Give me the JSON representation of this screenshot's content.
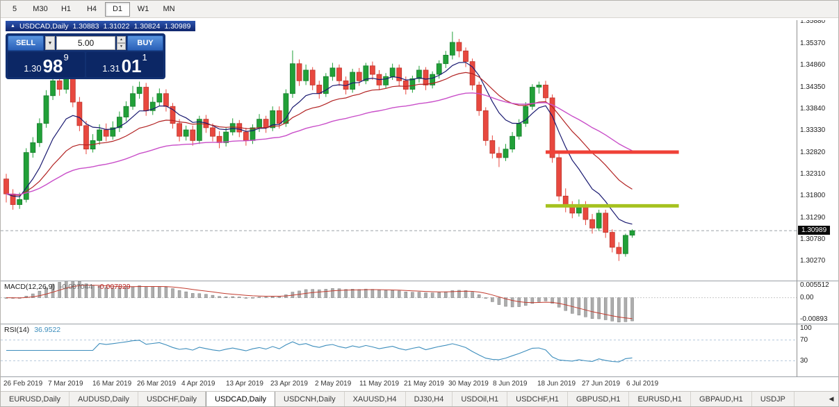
{
  "toolbar": {
    "timeframes": [
      {
        "label": "5",
        "active": false
      },
      {
        "label": "M30",
        "active": false
      },
      {
        "label": "H1",
        "active": false
      },
      {
        "label": "H4",
        "active": false
      },
      {
        "label": "D1",
        "active": true
      },
      {
        "label": "W1",
        "active": false
      },
      {
        "label": "MN",
        "active": false
      }
    ]
  },
  "icons": {
    "title_marker": "▲",
    "dropdown": "▼",
    "spin_up": "▲",
    "spin_down": "▼",
    "tab_scroll_left": "◀"
  },
  "chart_header": {
    "symbol": "USDCAD,Daily",
    "open": "1.30883",
    "high": "1.31022",
    "low": "1.30824",
    "close": "1.30989"
  },
  "trade_panel": {
    "sell_label": "SELL",
    "buy_label": "BUY",
    "volume": "5.00",
    "sell_price": {
      "small": "1.30",
      "big": "98",
      "sup": "9"
    },
    "buy_price": {
      "small": "1.31",
      "big": "01",
      "sup": "1"
    }
  },
  "chart_data": {
    "type": "candlestick",
    "symbol": "USDCAD",
    "period": "Daily",
    "bid": 1.30989,
    "bid_label": "1.30989",
    "price_axis": {
      "max": 1.3592,
      "min": 1.2982,
      "labels": [
        "1.35880",
        "1.35370",
        "1.34860",
        "1.34350",
        "1.33840",
        "1.33330",
        "1.32820",
        "1.32310",
        "1.31800",
        "1.31290",
        "1.30780",
        "1.30270"
      ]
    },
    "x_labels": [
      "26 Feb 2019",
      "7 Mar 2019",
      "16 Mar 2019",
      "26 Mar 2019",
      "4 Apr 2019",
      "13 Apr 2019",
      "23 Apr 2019",
      "2 May 2019",
      "11 May 2019",
      "21 May 2019",
      "30 May 2019",
      "8 Jun 2019",
      "18 Jun 2019",
      "27 Jun 2019",
      "6 Jul 2019"
    ],
    "candles": [
      [
        1.322,
        1.3232,
        1.3165,
        1.3185
      ],
      [
        1.3185,
        1.3196,
        1.3148,
        1.316
      ],
      [
        1.316,
        1.3188,
        1.315,
        1.3172
      ],
      [
        1.3172,
        1.3292,
        1.3165,
        1.3282
      ],
      [
        1.3282,
        1.3318,
        1.327,
        1.3305
      ],
      [
        1.3305,
        1.3362,
        1.3295,
        1.335
      ],
      [
        1.335,
        1.3428,
        1.334,
        1.3415
      ],
      [
        1.3415,
        1.3462,
        1.3405,
        1.345
      ],
      [
        1.345,
        1.3468,
        1.3415,
        1.343
      ],
      [
        1.343,
        1.347,
        1.342,
        1.3455
      ],
      [
        1.3455,
        1.3465,
        1.3388,
        1.34
      ],
      [
        1.34,
        1.3412,
        1.3332,
        1.3345
      ],
      [
        1.3345,
        1.3356,
        1.3278,
        1.329
      ],
      [
        1.329,
        1.3325,
        1.3282,
        1.331
      ],
      [
        1.331,
        1.3348,
        1.33,
        1.3335
      ],
      [
        1.3335,
        1.335,
        1.3308,
        1.332
      ],
      [
        1.332,
        1.3355,
        1.3312,
        1.334
      ],
      [
        1.334,
        1.3378,
        1.333,
        1.3365
      ],
      [
        1.3365,
        1.3402,
        1.3355,
        1.339
      ],
      [
        1.339,
        1.3438,
        1.3382,
        1.342
      ],
      [
        1.342,
        1.3448,
        1.3408,
        1.3435
      ],
      [
        1.3435,
        1.3445,
        1.3368,
        1.338
      ],
      [
        1.338,
        1.3412,
        1.337,
        1.34
      ],
      [
        1.34,
        1.3432,
        1.339,
        1.342
      ],
      [
        1.342,
        1.343,
        1.3378,
        1.339
      ],
      [
        1.339,
        1.3398,
        1.3338,
        1.335
      ],
      [
        1.335,
        1.336,
        1.3308,
        1.332
      ],
      [
        1.332,
        1.3345,
        1.331,
        1.3335
      ],
      [
        1.3335,
        1.3345,
        1.3298,
        1.331
      ],
      [
        1.331,
        1.3368,
        1.3302,
        1.336
      ],
      [
        1.336,
        1.337,
        1.3328,
        1.334
      ],
      [
        1.334,
        1.335,
        1.3308,
        1.332
      ],
      [
        1.332,
        1.3332,
        1.3292,
        1.3305
      ],
      [
        1.3305,
        1.334,
        1.3296,
        1.333
      ],
      [
        1.333,
        1.3362,
        1.3322,
        1.335
      ],
      [
        1.335,
        1.3358,
        1.3318,
        1.333
      ],
      [
        1.333,
        1.334,
        1.3298,
        1.331
      ],
      [
        1.331,
        1.3348,
        1.3302,
        1.334
      ],
      [
        1.334,
        1.3372,
        1.333,
        1.336
      ],
      [
        1.336,
        1.3368,
        1.3328,
        1.334
      ],
      [
        1.334,
        1.339,
        1.3332,
        1.338
      ],
      [
        1.338,
        1.339,
        1.3338,
        1.335
      ],
      [
        1.335,
        1.343,
        1.3342,
        1.342
      ],
      [
        1.342,
        1.3521,
        1.341,
        1.349
      ],
      [
        1.349,
        1.35,
        1.3438,
        1.345
      ],
      [
        1.345,
        1.3488,
        1.344,
        1.3475
      ],
      [
        1.3475,
        1.3482,
        1.3428,
        1.344
      ],
      [
        1.344,
        1.345,
        1.3408,
        1.342
      ],
      [
        1.342,
        1.3468,
        1.3412,
        1.346
      ],
      [
        1.346,
        1.3492,
        1.345,
        1.348
      ],
      [
        1.348,
        1.3488,
        1.3438,
        1.345
      ],
      [
        1.345,
        1.346,
        1.3418,
        1.343
      ],
      [
        1.343,
        1.3478,
        1.3422,
        1.347
      ],
      [
        1.347,
        1.348,
        1.3438,
        1.345
      ],
      [
        1.345,
        1.3492,
        1.3442,
        1.3485
      ],
      [
        1.3485,
        1.3495,
        1.3452,
        1.3465
      ],
      [
        1.3465,
        1.3475,
        1.3428,
        1.344
      ],
      [
        1.344,
        1.3468,
        1.3432,
        1.346
      ],
      [
        1.346,
        1.349,
        1.3452,
        1.348
      ],
      [
        1.348,
        1.3488,
        1.3438,
        1.345
      ],
      [
        1.345,
        1.346,
        1.3418,
        1.343
      ],
      [
        1.343,
        1.3462,
        1.3422,
        1.3455
      ],
      [
        1.3455,
        1.3485,
        1.3446,
        1.3475
      ],
      [
        1.3475,
        1.3482,
        1.3428,
        1.344
      ],
      [
        1.344,
        1.3472,
        1.3432,
        1.3465
      ],
      [
        1.3465,
        1.3498,
        1.3455,
        1.349
      ],
      [
        1.349,
        1.352,
        1.348,
        1.351
      ],
      [
        1.351,
        1.3565,
        1.35,
        1.354
      ],
      [
        1.354,
        1.3548,
        1.3505,
        1.352
      ],
      [
        1.352,
        1.3528,
        1.3482,
        1.3495
      ],
      [
        1.3495,
        1.3502,
        1.3428,
        1.344
      ],
      [
        1.344,
        1.3448,
        1.3368,
        1.338
      ],
      [
        1.338,
        1.3388,
        1.3298,
        1.331
      ],
      [
        1.331,
        1.3322,
        1.3268,
        1.328
      ],
      [
        1.328,
        1.3295,
        1.3248,
        1.327
      ],
      [
        1.327,
        1.3302,
        1.3262,
        1.329
      ],
      [
        1.329,
        1.333,
        1.3282,
        1.332
      ],
      [
        1.332,
        1.336,
        1.3312,
        1.335
      ],
      [
        1.335,
        1.34,
        1.3342,
        1.339
      ],
      [
        1.339,
        1.3442,
        1.3382,
        1.3435
      ],
      [
        1.3435,
        1.3448,
        1.342,
        1.344
      ],
      [
        1.344,
        1.345,
        1.3398,
        1.341
      ],
      [
        1.341,
        1.3418,
        1.3258,
        1.327
      ],
      [
        1.327,
        1.328,
        1.3168,
        1.318
      ],
      [
        1.318,
        1.3198,
        1.3142,
        1.3155
      ],
      [
        1.3155,
        1.3168,
        1.3128,
        1.314
      ],
      [
        1.314,
        1.3172,
        1.3132,
        1.316
      ],
      [
        1.316,
        1.3168,
        1.3112,
        1.3125
      ],
      [
        1.3125,
        1.3138,
        1.3092,
        1.3105
      ],
      [
        1.3105,
        1.3148,
        1.3098,
        1.314
      ],
      [
        1.314,
        1.3148,
        1.3082,
        1.3095
      ],
      [
        1.3095,
        1.3102,
        1.3048,
        1.306
      ],
      [
        1.306,
        1.3072,
        1.3028,
        1.3045
      ],
      [
        1.3045,
        1.3092,
        1.3038,
        1.3088
      ],
      [
        1.30883,
        1.31022,
        1.30824,
        1.30989
      ]
    ],
    "colors": {
      "up": "#21a038",
      "up_edge": "#157a2b",
      "down": "#e8483f",
      "down_edge": "#b93228",
      "ma_fast": "#191970",
      "ma_mid": "#b22222",
      "ma_slow": "#c94fc9",
      "macd_hist": "#adadad",
      "macd_hist_edge": "#7f7f7f",
      "macd_signal": "#c23b2e",
      "rsi": "#3c8dbc",
      "bid_line": "#9aa0a6"
    },
    "moving_averages": [
      {
        "name": "fast",
        "period": 9
      },
      {
        "name": "mid",
        "period": 21
      },
      {
        "name": "slow",
        "period": 50
      }
    ],
    "hlines": [
      {
        "name": "resistance",
        "price": 1.3283,
        "from": 81,
        "to": 101,
        "color": "#ef4137",
        "width": 5
      },
      {
        "name": "support",
        "price": 1.3157,
        "from": 81,
        "to": 101,
        "color": "#a6c220",
        "width": 5
      }
    ],
    "macd": {
      "label": "MACD(12,26,9)",
      "value_main": "-0.007044",
      "value_signal": "-0.007829",
      "fast": 12,
      "slow": 26,
      "signal": 9,
      "axis": {
        "max": 0.006,
        "min": -0.0095,
        "labels": [
          "0.005512",
          "0.00",
          "-0.00893"
        ]
      }
    },
    "rsi": {
      "label": "RSI(14)",
      "value": "36.9522",
      "period": 14,
      "levels": [
        70,
        30
      ],
      "axis_labels": [
        "100",
        "70",
        "30"
      ]
    }
  },
  "tabs": {
    "items": [
      {
        "label": "EURUSD,Daily",
        "active": false
      },
      {
        "label": "AUDUSD,Daily",
        "active": false
      },
      {
        "label": "USDCHF,Daily",
        "active": false
      },
      {
        "label": "USDCAD,Daily",
        "active": true
      },
      {
        "label": "USDCNH,Daily",
        "active": false
      },
      {
        "label": "XAUUSD,H4",
        "active": false
      },
      {
        "label": "DJ30,H4",
        "active": false
      },
      {
        "label": "USDOil,H1",
        "active": false
      },
      {
        "label": "USDCHF,H1",
        "active": false
      },
      {
        "label": "GBPUSD,H1",
        "active": false
      },
      {
        "label": "EURUSD,H1",
        "active": false
      },
      {
        "label": "GBPAUD,H1",
        "active": false
      },
      {
        "label": "USDJP",
        "active": false
      }
    ]
  }
}
